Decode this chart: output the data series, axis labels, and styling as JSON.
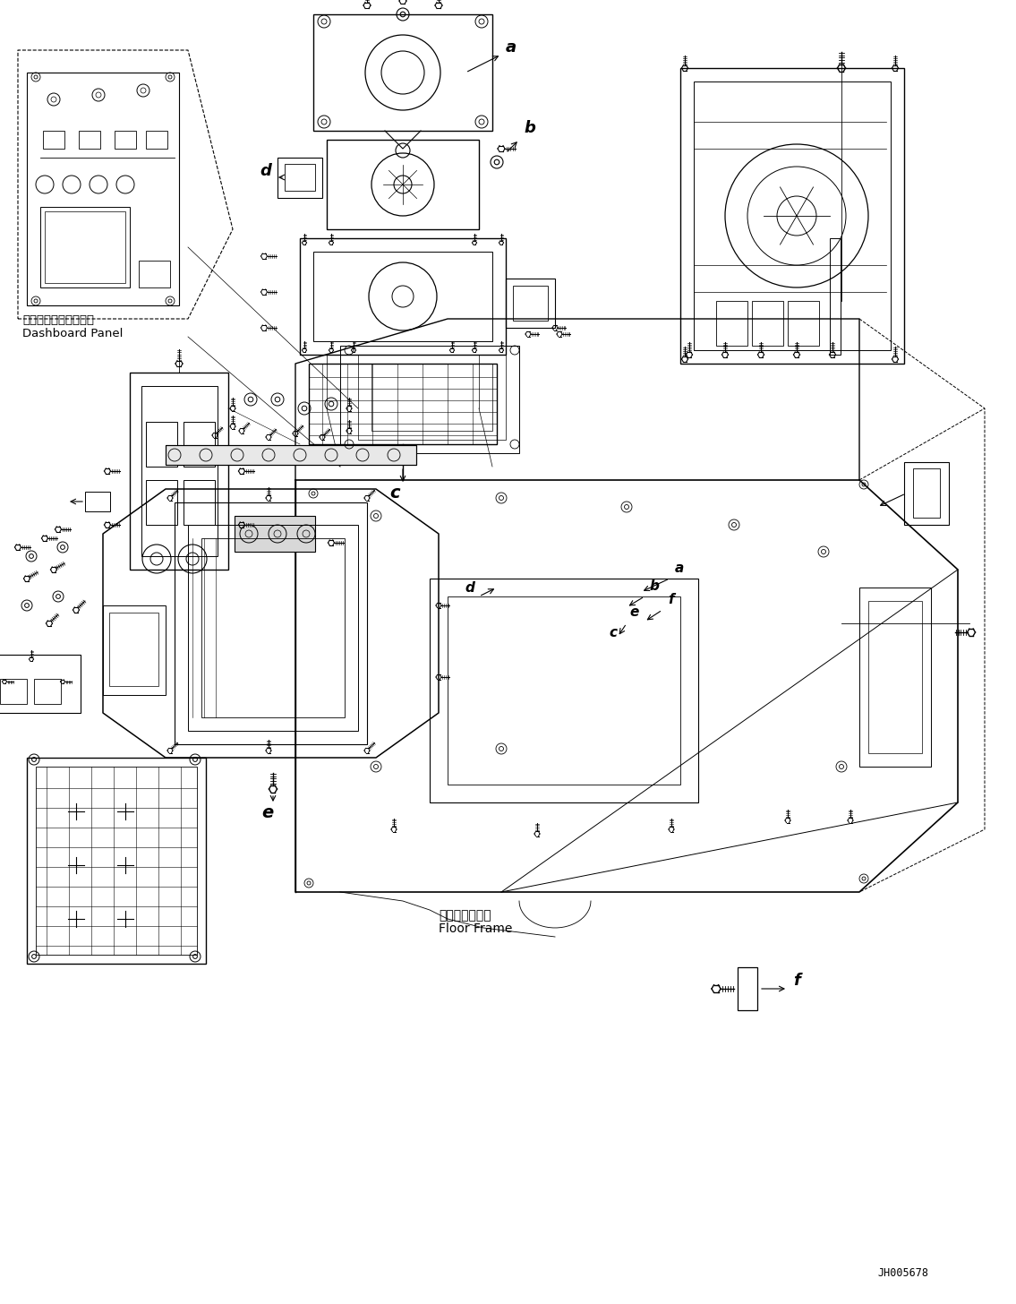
{
  "background_color": "#ffffff",
  "line_color": "#000000",
  "part_number": "JH005678",
  "labels": {
    "dashboard_jp": "ダッシュボードパネル",
    "dashboard_en": "Dashboard Panel",
    "floor_frame_jp": "フロアフレーム",
    "floor_frame_en": "Floor Frame"
  }
}
